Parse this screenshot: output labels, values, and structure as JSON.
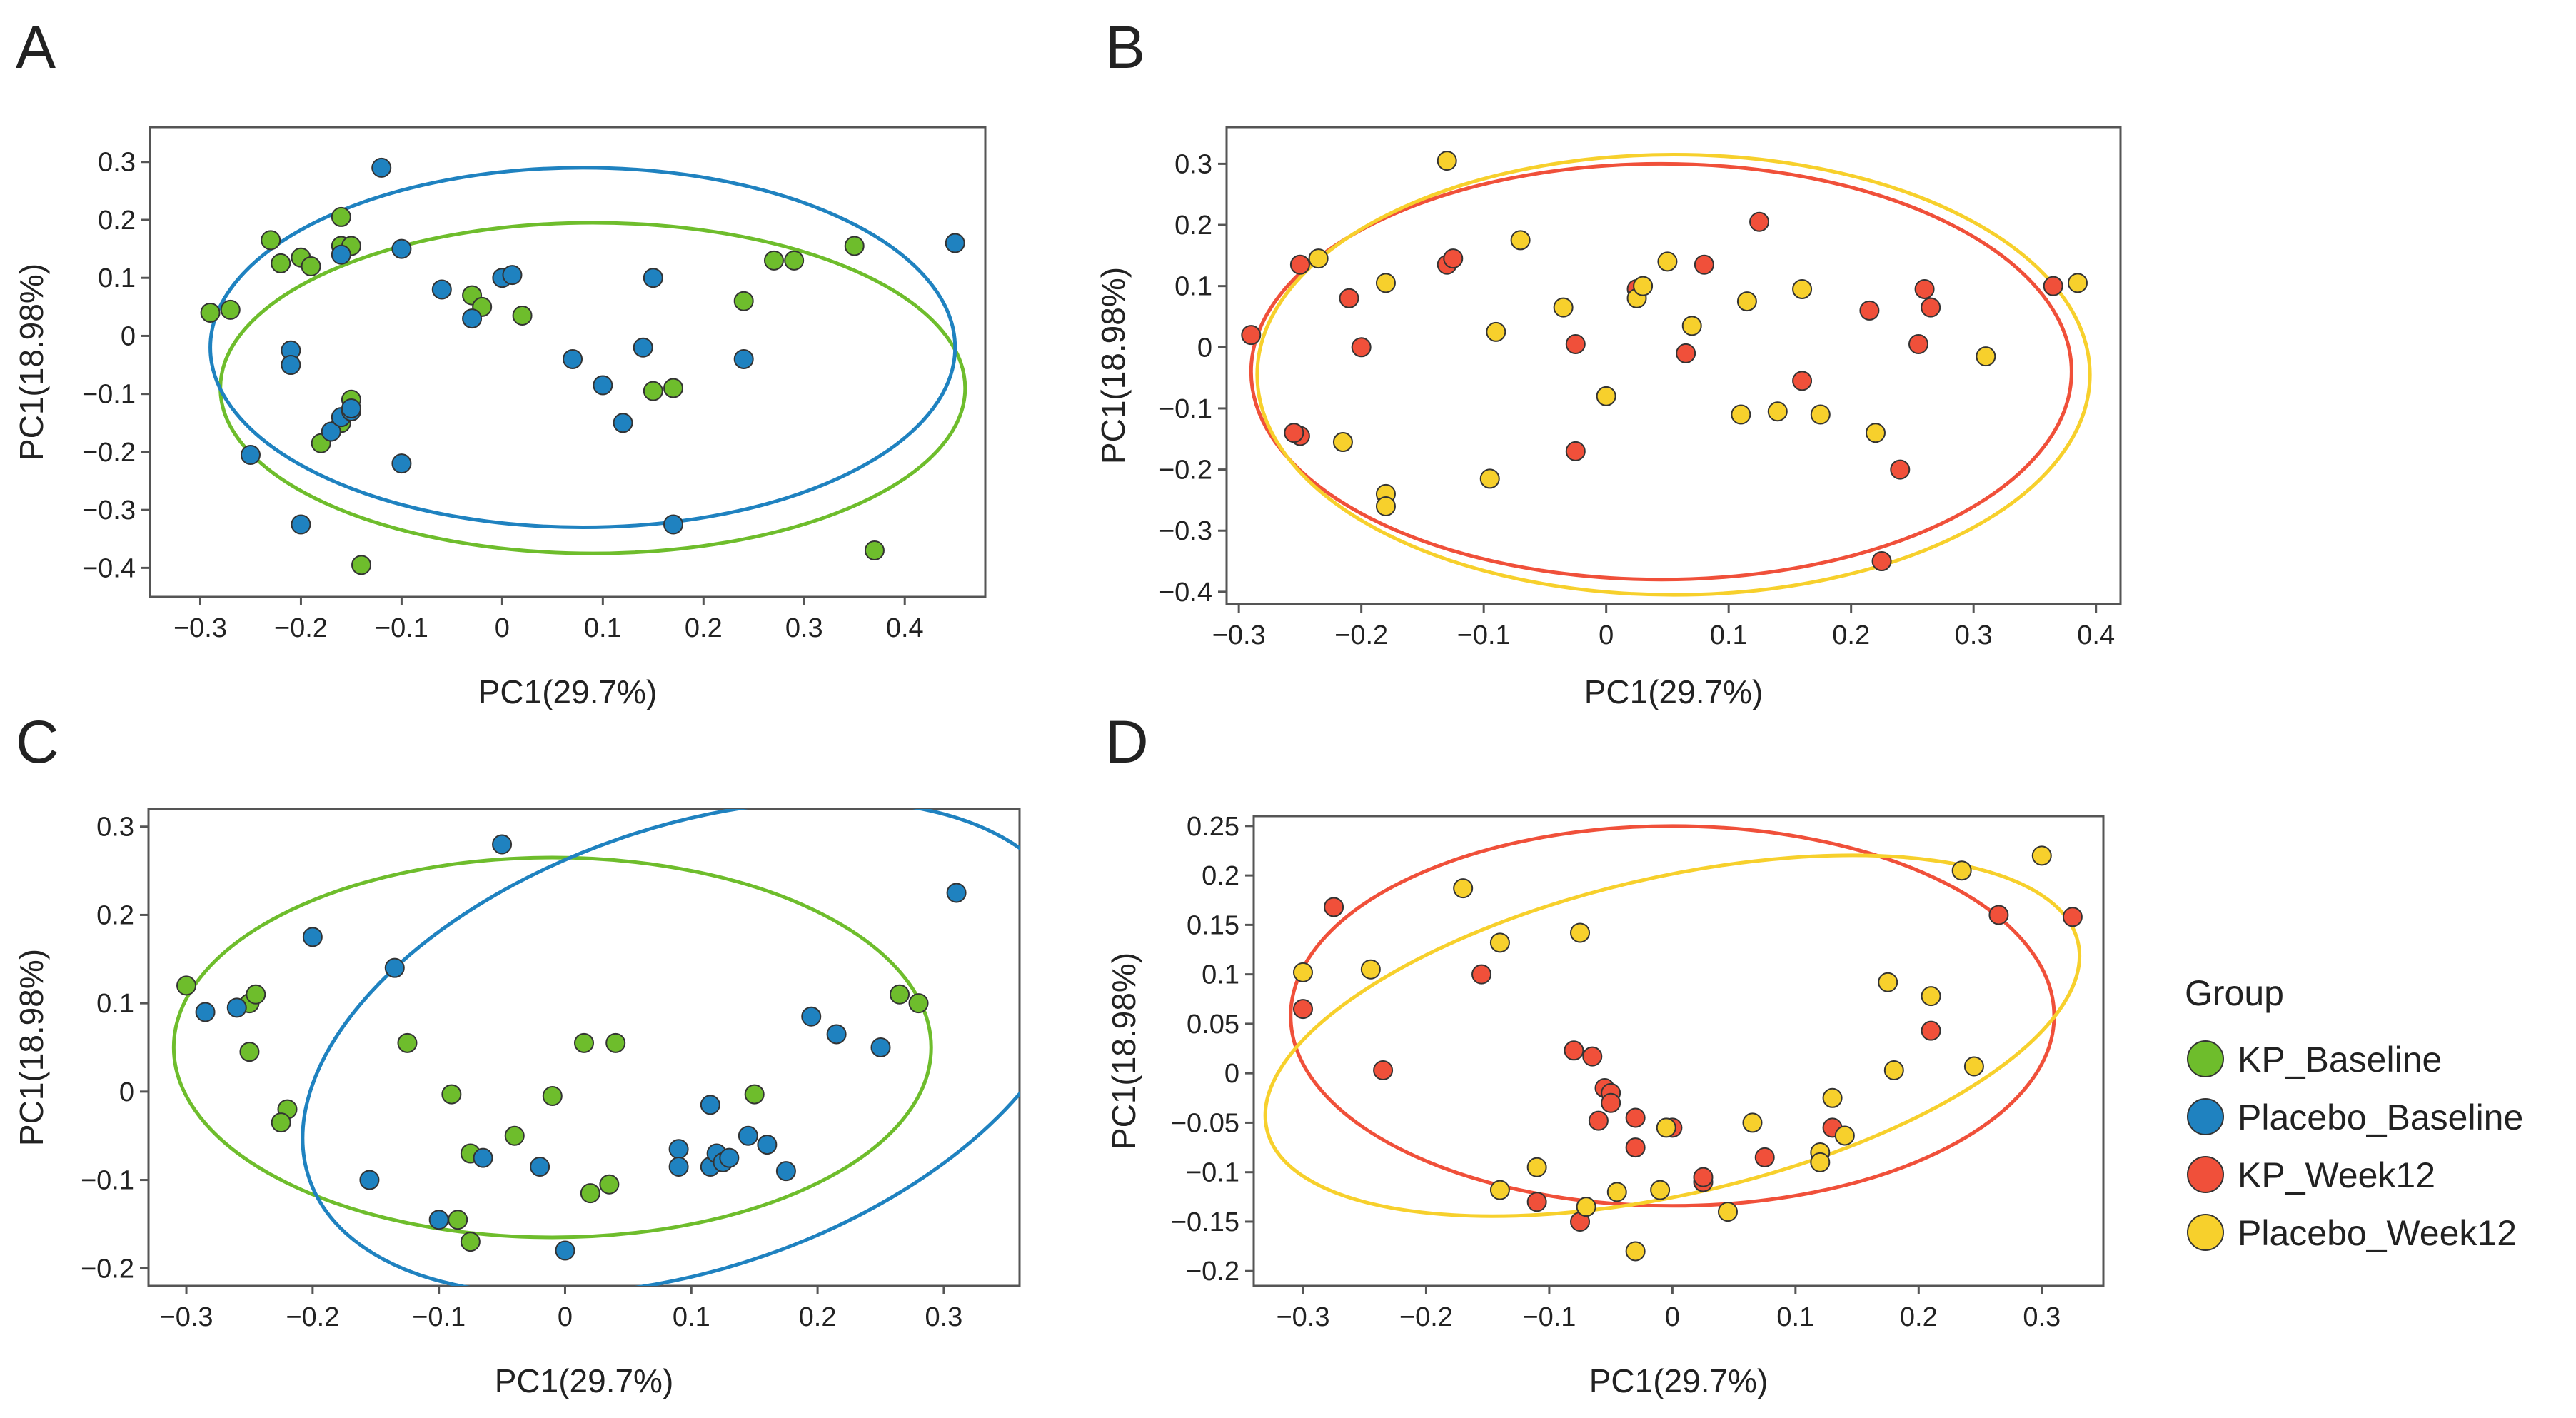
{
  "legend": {
    "title": "Group",
    "items": [
      {
        "name": "KP_Baseline",
        "color": "#6ebd2c"
      },
      {
        "name": "Placebo_Baseline",
        "color": "#1f82c0"
      },
      {
        "name": "KP_Week12",
        "color": "#f0503a"
      },
      {
        "name": "Placebo_Week12",
        "color": "#f7d02c"
      }
    ]
  },
  "chart_data": [
    {
      "panel": "A",
      "type": "scatter",
      "xlabel": "PC1(29.7%)",
      "ylabel": "PC1(18.98%)",
      "xlim": [
        -0.35,
        0.48
      ],
      "ylim": [
        -0.45,
        0.36
      ],
      "xticks": [
        -0.3,
        -0.2,
        -0.1,
        0,
        0.1,
        0.2,
        0.3,
        0.4
      ],
      "xtick_labels": [
        "−0.3",
        "−0.2",
        "−0.1",
        "0",
        "0.1",
        "0.2",
        "0.3",
        "0.4"
      ],
      "yticks": [
        0.3,
        0.2,
        0.1,
        0,
        -0.1,
        -0.2,
        -0.3,
        -0.4
      ],
      "ytick_labels": [
        "0.3",
        "0.2",
        "0.1",
        "0",
        "−0.1",
        "−0.2",
        "−0.3",
        "−0.4"
      ],
      "series": [
        {
          "name": "KP_Baseline",
          "color": "#6ebd2c",
          "ellipse": {
            "cx": 0.09,
            "cy": -0.09,
            "rx": 0.37,
            "ry": 0.285
          },
          "points": [
            [
              -0.29,
              0.04
            ],
            [
              -0.27,
              0.045
            ],
            [
              -0.23,
              0.165
            ],
            [
              -0.22,
              0.125
            ],
            [
              -0.2,
              0.135
            ],
            [
              -0.19,
              0.12
            ],
            [
              -0.16,
              0.205
            ],
            [
              -0.16,
              0.155
            ],
            [
              -0.15,
              0.155
            ],
            [
              -0.15,
              -0.11
            ],
            [
              -0.16,
              -0.15
            ],
            [
              -0.18,
              -0.185
            ],
            [
              -0.14,
              -0.395
            ],
            [
              -0.03,
              0.07
            ],
            [
              -0.02,
              0.05
            ],
            [
              0.02,
              0.035
            ],
            [
              0.15,
              -0.095
            ],
            [
              0.17,
              -0.09
            ],
            [
              0.24,
              0.06
            ],
            [
              0.27,
              0.13
            ],
            [
              0.29,
              0.13
            ],
            [
              0.35,
              0.155
            ],
            [
              0.37,
              -0.37
            ]
          ]
        },
        {
          "name": "Placebo_Baseline",
          "color": "#1f82c0",
          "ellipse": {
            "cx": 0.08,
            "cy": -0.02,
            "rx": 0.37,
            "ry": 0.31
          },
          "points": [
            [
              -0.12,
              0.29
            ],
            [
              -0.25,
              -0.205
            ],
            [
              -0.2,
              -0.325
            ],
            [
              -0.21,
              -0.025
            ],
            [
              -0.21,
              -0.05
            ],
            [
              -0.17,
              -0.165
            ],
            [
              -0.16,
              -0.14
            ],
            [
              -0.15,
              -0.13
            ],
            [
              -0.15,
              -0.125
            ],
            [
              -0.16,
              0.14
            ],
            [
              -0.1,
              0.15
            ],
            [
              -0.1,
              -0.22
            ],
            [
              -0.06,
              0.08
            ],
            [
              -0.03,
              0.03
            ],
            [
              0,
              0.1
            ],
            [
              0.01,
              0.105
            ],
            [
              0.07,
              -0.04
            ],
            [
              0.1,
              -0.085
            ],
            [
              0.12,
              -0.15
            ],
            [
              0.14,
              -0.02
            ],
            [
              0.15,
              0.1
            ],
            [
              0.17,
              -0.325
            ],
            [
              0.24,
              -0.04
            ],
            [
              0.45,
              0.16
            ]
          ]
        }
      ]
    },
    {
      "panel": "B",
      "type": "scatter",
      "xlabel": "PC1(29.7%)",
      "ylabel": "PC1(18.98%)",
      "xlim": [
        -0.31,
        0.42
      ],
      "ylim": [
        -0.42,
        0.36
      ],
      "xticks": [
        -0.3,
        -0.2,
        -0.1,
        0,
        0.1,
        0.2,
        0.3,
        0.4
      ],
      "xtick_labels": [
        "−0.3",
        "−0.2",
        "−0.1",
        "0",
        "0.1",
        "0.2",
        "0.3",
        "0.4"
      ],
      "yticks": [
        0.3,
        0.2,
        0.1,
        0,
        -0.1,
        -0.2,
        -0.3,
        -0.4
      ],
      "ytick_labels": [
        "0.3",
        "0.2",
        "0.1",
        "0",
        "−0.1",
        "−0.2",
        "−0.3",
        "−0.4"
      ],
      "series": [
        {
          "name": "KP_Week12",
          "color": "#f0503a",
          "ellipse": {
            "cx": 0.045,
            "cy": -0.04,
            "rx": 0.335,
            "ry": 0.34
          },
          "points": [
            [
              -0.29,
              0.02
            ],
            [
              -0.25,
              0.135
            ],
            [
              -0.25,
              -0.145
            ],
            [
              -0.255,
              -0.14
            ],
            [
              -0.21,
              0.08
            ],
            [
              -0.2,
              0
            ],
            [
              -0.13,
              0.135
            ],
            [
              -0.125,
              0.145
            ],
            [
              -0.025,
              0.005
            ],
            [
              -0.025,
              -0.17
            ],
            [
              0.025,
              0.095
            ],
            [
              0.065,
              -0.01
            ],
            [
              0.08,
              0.135
            ],
            [
              0.125,
              0.205
            ],
            [
              0.16,
              -0.055
            ],
            [
              0.215,
              0.06
            ],
            [
              0.225,
              -0.35
            ],
            [
              0.24,
              -0.2
            ],
            [
              0.255,
              0.005
            ],
            [
              0.26,
              0.095
            ],
            [
              0.265,
              0.065
            ],
            [
              0.365,
              0.1
            ]
          ]
        },
        {
          "name": "Placebo_Week12",
          "color": "#f7d02c",
          "ellipse": {
            "cx": 0.055,
            "cy": -0.045,
            "rx": 0.34,
            "ry": 0.36
          },
          "points": [
            [
              -0.13,
              0.305
            ],
            [
              -0.235,
              0.145
            ],
            [
              -0.215,
              -0.155
            ],
            [
              -0.18,
              0.105
            ],
            [
              -0.18,
              -0.24
            ],
            [
              -0.18,
              -0.26
            ],
            [
              -0.095,
              -0.215
            ],
            [
              -0.09,
              0.025
            ],
            [
              -0.07,
              0.175
            ],
            [
              -0.035,
              0.065
            ],
            [
              0,
              -0.08
            ],
            [
              0.025,
              0.08
            ],
            [
              0.03,
              0.1
            ],
            [
              0.05,
              0.14
            ],
            [
              0.07,
              0.035
            ],
            [
              0.11,
              -0.11
            ],
            [
              0.115,
              0.075
            ],
            [
              0.14,
              -0.105
            ],
            [
              0.16,
              0.095
            ],
            [
              0.175,
              -0.11
            ],
            [
              0.22,
              -0.14
            ],
            [
              0.31,
              -0.015
            ],
            [
              0.385,
              0.105
            ]
          ]
        }
      ]
    },
    {
      "panel": "C",
      "type": "scatter",
      "xlabel": "PC1(29.7%)",
      "ylabel": "PC1(18.98%)",
      "xlim": [
        -0.33,
        0.36
      ],
      "ylim": [
        -0.22,
        0.32
      ],
      "xticks": [
        -0.3,
        -0.2,
        -0.1,
        0,
        0.1,
        0.2,
        0.3
      ],
      "xtick_labels": [
        "−0.3",
        "−0.2",
        "−0.1",
        "0",
        "0.1",
        "0.2",
        "0.3"
      ],
      "yticks": [
        0.3,
        0.2,
        0.1,
        0,
        -0.1,
        -0.2
      ],
      "ytick_labels": [
        "0.3",
        "0.2",
        "0.1",
        "0",
        "−0.1",
        "−0.2"
      ],
      "series": [
        {
          "name": "KP_Baseline",
          "color": "#6ebd2c",
          "ellipse": {
            "cx": -0.01,
            "cy": 0.05,
            "rx": 0.3,
            "ry": 0.215
          },
          "points": [
            [
              -0.3,
              0.12
            ],
            [
              -0.25,
              0.1
            ],
            [
              -0.245,
              0.11
            ],
            [
              -0.25,
              0.045
            ],
            [
              -0.22,
              -0.02
            ],
            [
              -0.225,
              -0.035
            ],
            [
              -0.125,
              0.055
            ],
            [
              -0.09,
              -0.003
            ],
            [
              -0.075,
              -0.07
            ],
            [
              -0.085,
              -0.145
            ],
            [
              -0.075,
              -0.17
            ],
            [
              -0.04,
              -0.05
            ],
            [
              -0.01,
              -0.005
            ],
            [
              0.015,
              0.055
            ],
            [
              0.02,
              -0.115
            ],
            [
              0.04,
              0.055
            ],
            [
              0.035,
              -0.105
            ],
            [
              0.15,
              -0.003
            ],
            [
              0.265,
              0.11
            ],
            [
              0.28,
              0.1
            ]
          ]
        },
        {
          "name": "Placebo_Baseline",
          "color": "#1f82c0",
          "ellipse": {
            "cx": 0.1,
            "cy": 0.05,
            "rx": 0.32,
            "ry": 0.25,
            "rotate": -19
          },
          "points": [
            [
              -0.285,
              0.09
            ],
            [
              -0.26,
              0.095
            ],
            [
              -0.2,
              0.175
            ],
            [
              -0.155,
              -0.1
            ],
            [
              -0.135,
              0.14
            ],
            [
              -0.1,
              -0.145
            ],
            [
              -0.065,
              -0.075
            ],
            [
              -0.05,
              0.28
            ],
            [
              -0.02,
              -0.085
            ],
            [
              0,
              -0.18
            ],
            [
              0.09,
              -0.065
            ],
            [
              0.09,
              -0.085
            ],
            [
              0.115,
              -0.085
            ],
            [
              0.115,
              -0.015
            ],
            [
              0.12,
              -0.07
            ],
            [
              0.125,
              -0.08
            ],
            [
              0.13,
              -0.075
            ],
            [
              0.145,
              -0.05
            ],
            [
              0.16,
              -0.06
            ],
            [
              0.175,
              -0.09
            ],
            [
              0.195,
              0.085
            ],
            [
              0.215,
              0.065
            ],
            [
              0.25,
              0.05
            ],
            [
              0.31,
              0.225
            ]
          ]
        }
      ]
    },
    {
      "panel": "D",
      "type": "scatter",
      "xlabel": "PC1(29.7%)",
      "ylabel": "PC1(18.98%)",
      "xlim": [
        -0.34,
        0.35
      ],
      "ylim": [
        -0.215,
        0.26
      ],
      "xticks": [
        -0.3,
        -0.2,
        -0.1,
        0,
        0.1,
        0.2,
        0.3
      ],
      "xtick_labels": [
        "−0.3",
        "−0.2",
        "−0.1",
        "0",
        "0.1",
        "0.2",
        "0.3"
      ],
      "yticks": [
        0.25,
        0.2,
        0.15,
        0.1,
        0.05,
        0,
        -0.05,
        -0.1,
        -0.15,
        -0.2
      ],
      "ytick_labels": [
        "0.25",
        "0.2",
        "0.15",
        "0.1",
        "0.05",
        "0",
        "−0.05",
        "−0.1",
        "−0.15",
        "−0.2"
      ],
      "series": [
        {
          "name": "KP_Week12",
          "color": "#f0503a",
          "ellipse": {
            "cx": 0.0,
            "cy": 0.058,
            "rx": 0.31,
            "ry": 0.192
          },
          "points": [
            [
              -0.3,
              0.065
            ],
            [
              -0.275,
              0.168
            ],
            [
              -0.235,
              0.003
            ],
            [
              -0.155,
              0.1
            ],
            [
              -0.11,
              -0.13
            ],
            [
              -0.08,
              0.023
            ],
            [
              -0.075,
              -0.15
            ],
            [
              -0.065,
              0.017
            ],
            [
              -0.06,
              -0.048
            ],
            [
              -0.055,
              -0.015
            ],
            [
              -0.05,
              -0.02
            ],
            [
              -0.05,
              -0.03
            ],
            [
              -0.03,
              -0.075
            ],
            [
              -0.03,
              -0.045
            ],
            [
              0,
              -0.055
            ],
            [
              0.025,
              -0.11
            ],
            [
              0.025,
              -0.105
            ],
            [
              0.075,
              -0.085
            ],
            [
              0.13,
              -0.055
            ],
            [
              0.21,
              0.043
            ],
            [
              0.265,
              0.16
            ],
            [
              0.325,
              0.158
            ]
          ]
        },
        {
          "name": "Placebo_Week12",
          "color": "#f7d02c",
          "ellipse": {
            "cx": 0.0,
            "cy": 0.038,
            "rx": 0.338,
            "ry": 0.16,
            "rotate": -13
          },
          "points": [
            [
              -0.3,
              0.102
            ],
            [
              -0.245,
              0.105
            ],
            [
              -0.17,
              0.187
            ],
            [
              -0.14,
              0.132
            ],
            [
              -0.14,
              -0.118
            ],
            [
              -0.11,
              -0.095
            ],
            [
              -0.075,
              0.142
            ],
            [
              -0.07,
              -0.135
            ],
            [
              -0.045,
              -0.12
            ],
            [
              -0.01,
              -0.118
            ],
            [
              -0.005,
              -0.055
            ],
            [
              -0.03,
              -0.18
            ],
            [
              0.045,
              -0.14
            ],
            [
              0.065,
              -0.05
            ],
            [
              0.12,
              -0.08
            ],
            [
              0.12,
              -0.09
            ],
            [
              0.13,
              -0.025
            ],
            [
              0.14,
              -0.063
            ],
            [
              0.175,
              0.092
            ],
            [
              0.18,
              0.003
            ],
            [
              0.21,
              0.078
            ],
            [
              0.235,
              0.205
            ],
            [
              0.245,
              0.007
            ],
            [
              0.3,
              0.22
            ]
          ]
        }
      ]
    }
  ]
}
